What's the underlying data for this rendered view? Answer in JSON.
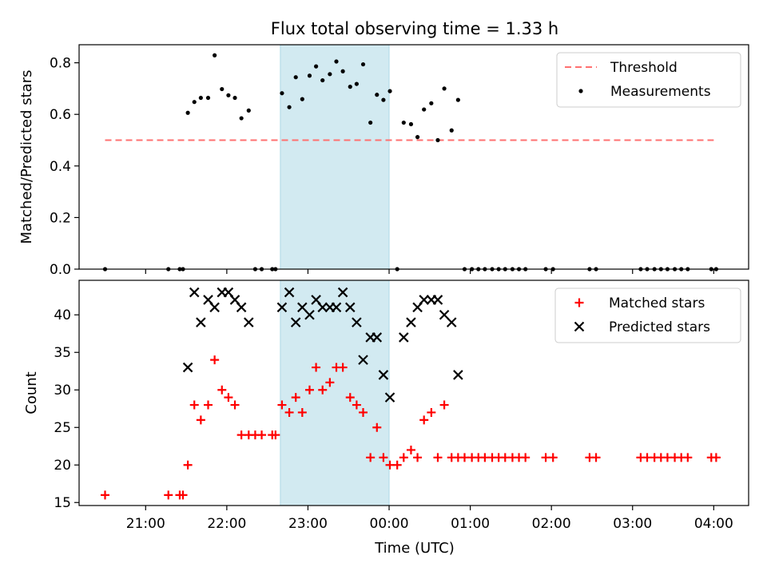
{
  "chart_data": {
    "title": "Flux total observing time = 1.33 h",
    "xlabel": "Time (UTC)",
    "x_unit": "hours since 21:00 UTC",
    "xlim": [
      -0.82,
      7.43
    ],
    "xtick_labels": [
      "21:00",
      "22:00",
      "23:00",
      "00:00",
      "01:00",
      "02:00",
      "03:00",
      "04:00"
    ],
    "xtick_values": [
      0,
      1,
      2,
      3,
      4,
      5,
      6,
      7
    ],
    "highlight_span": {
      "x0": 1.66,
      "x1": 3.0,
      "color": "#add8e6"
    },
    "panels": [
      {
        "type": "scatter",
        "ylabel": "Matched/Predicted stars",
        "ylim": [
          0,
          0.87
        ],
        "yticks": [
          0.0,
          0.2,
          0.4,
          0.6,
          0.8
        ],
        "ytick_labels": [
          "0.0",
          "0.2",
          "0.4",
          "0.6",
          "0.8"
        ],
        "legend": [
          "Threshold",
          "Measurements"
        ],
        "legend_position": "top-right",
        "threshold": {
          "name": "Threshold",
          "value": 0.5,
          "x_range": [
            -0.5,
            7.0
          ],
          "color": "#ff7070"
        },
        "series": [
          {
            "name": "Measurements",
            "marker": "dot",
            "color": "#000000",
            "points": [
              [
                -0.5,
                0
              ],
              [
                0.28,
                0
              ],
              [
                0.42,
                0
              ],
              [
                0.46,
                0
              ],
              [
                0.52,
                0.606
              ],
              [
                0.6,
                0.648
              ],
              [
                0.68,
                0.664
              ],
              [
                0.77,
                0.664
              ],
              [
                0.85,
                0.829
              ],
              [
                0.94,
                0.698
              ],
              [
                1.02,
                0.674
              ],
              [
                1.1,
                0.664
              ],
              [
                1.18,
                0.585
              ],
              [
                1.27,
                0.615
              ],
              [
                1.35,
                0
              ],
              [
                1.43,
                0
              ],
              [
                1.56,
                0
              ],
              [
                1.6,
                0
              ],
              [
                1.68,
                0.682
              ],
              [
                1.77,
                0.628
              ],
              [
                1.85,
                0.744
              ],
              [
                1.93,
                0.659
              ],
              [
                2.02,
                0.75
              ],
              [
                2.1,
                0.786
              ],
              [
                2.18,
                0.732
              ],
              [
                2.27,
                0.756
              ],
              [
                2.35,
                0.805
              ],
              [
                2.43,
                0.767
              ],
              [
                2.52,
                0.707
              ],
              [
                2.6,
                0.718
              ],
              [
                2.68,
                0.794
              ],
              [
                2.77,
                0.568
              ],
              [
                2.85,
                0.676
              ],
              [
                2.93,
                0.656
              ],
              [
                3.01,
                0.69
              ],
              [
                3.1,
                0
              ],
              [
                3.18,
                0.568
              ],
              [
                3.27,
                0.562
              ],
              [
                3.35,
                0.512
              ],
              [
                3.43,
                0.619
              ],
              [
                3.52,
                0.643
              ],
              [
                3.6,
                0.5
              ],
              [
                3.68,
                0.7
              ],
              [
                3.77,
                0.538
              ],
              [
                3.85,
                0.656
              ],
              [
                3.93,
                0
              ],
              [
                4.02,
                0
              ],
              [
                4.1,
                0
              ],
              [
                4.18,
                0
              ],
              [
                4.27,
                0
              ],
              [
                4.35,
                0
              ],
              [
                4.43,
                0
              ],
              [
                4.52,
                0
              ],
              [
                4.6,
                0
              ],
              [
                4.68,
                0
              ],
              [
                4.93,
                0
              ],
              [
                5.02,
                0
              ],
              [
                5.47,
                0
              ],
              [
                5.55,
                0
              ],
              [
                6.1,
                0
              ],
              [
                6.18,
                0
              ],
              [
                6.27,
                0
              ],
              [
                6.35,
                0
              ],
              [
                6.43,
                0
              ],
              [
                6.52,
                0
              ],
              [
                6.6,
                0
              ],
              [
                6.68,
                0
              ],
              [
                6.97,
                0
              ],
              [
                7.03,
                0
              ]
            ]
          }
        ]
      },
      {
        "type": "scatter",
        "ylabel": "Count",
        "ylim": [
          14.6,
          44.6
        ],
        "yticks": [
          15,
          20,
          25,
          30,
          35,
          40
        ],
        "ytick_labels": [
          "15",
          "20",
          "25",
          "30",
          "35",
          "40"
        ],
        "legend": [
          "Matched stars",
          "Predicted stars"
        ],
        "legend_position": "top-right",
        "series": [
          {
            "name": "Matched stars",
            "marker": "plus",
            "color": "#ff0000",
            "points": [
              [
                -0.5,
                16
              ],
              [
                0.28,
                16
              ],
              [
                0.42,
                16
              ],
              [
                0.46,
                16
              ],
              [
                0.52,
                20
              ],
              [
                0.6,
                28
              ],
              [
                0.68,
                26
              ],
              [
                0.77,
                28
              ],
              [
                0.85,
                34
              ],
              [
                0.94,
                30
              ],
              [
                1.02,
                29
              ],
              [
                1.1,
                28
              ],
              [
                1.18,
                24
              ],
              [
                1.27,
                24
              ],
              [
                1.35,
                24
              ],
              [
                1.43,
                24
              ],
              [
                1.56,
                24
              ],
              [
                1.6,
                24
              ],
              [
                1.68,
                28
              ],
              [
                1.77,
                27
              ],
              [
                1.85,
                29
              ],
              [
                1.93,
                27
              ],
              [
                2.02,
                30
              ],
              [
                2.1,
                33
              ],
              [
                2.18,
                30
              ],
              [
                2.27,
                31
              ],
              [
                2.35,
                33
              ],
              [
                2.43,
                33
              ],
              [
                2.52,
                29
              ],
              [
                2.6,
                28
              ],
              [
                2.68,
                27
              ],
              [
                2.77,
                21
              ],
              [
                2.85,
                25
              ],
              [
                2.93,
                21
              ],
              [
                3.01,
                20
              ],
              [
                3.1,
                20
              ],
              [
                3.18,
                21
              ],
              [
                3.27,
                22
              ],
              [
                3.35,
                21
              ],
              [
                3.43,
                26
              ],
              [
                3.52,
                27
              ],
              [
                3.6,
                21
              ],
              [
                3.68,
                28
              ],
              [
                3.77,
                21
              ],
              [
                3.85,
                21
              ],
              [
                3.93,
                21
              ],
              [
                4.02,
                21
              ],
              [
                4.1,
                21
              ],
              [
                4.18,
                21
              ],
              [
                4.27,
                21
              ],
              [
                4.35,
                21
              ],
              [
                4.43,
                21
              ],
              [
                4.52,
                21
              ],
              [
                4.6,
                21
              ],
              [
                4.68,
                21
              ],
              [
                4.93,
                21
              ],
              [
                5.02,
                21
              ],
              [
                5.47,
                21
              ],
              [
                5.55,
                21
              ],
              [
                6.1,
                21
              ],
              [
                6.18,
                21
              ],
              [
                6.27,
                21
              ],
              [
                6.35,
                21
              ],
              [
                6.43,
                21
              ],
              [
                6.52,
                21
              ],
              [
                6.6,
                21
              ],
              [
                6.68,
                21
              ],
              [
                6.97,
                21
              ],
              [
                7.03,
                21
              ]
            ]
          },
          {
            "name": "Predicted stars",
            "marker": "x",
            "color": "#000000",
            "points": [
              [
                0.52,
                33
              ],
              [
                0.6,
                43
              ],
              [
                0.68,
                39
              ],
              [
                0.77,
                42
              ],
              [
                0.85,
                41
              ],
              [
                0.94,
                43
              ],
              [
                1.02,
                43
              ],
              [
                1.1,
                42
              ],
              [
                1.18,
                41
              ],
              [
                1.27,
                39
              ],
              [
                1.68,
                41
              ],
              [
                1.77,
                43
              ],
              [
                1.85,
                39
              ],
              [
                1.93,
                41
              ],
              [
                2.02,
                40
              ],
              [
                2.1,
                42
              ],
              [
                2.18,
                41
              ],
              [
                2.27,
                41
              ],
              [
                2.35,
                41
              ],
              [
                2.43,
                43
              ],
              [
                2.52,
                41
              ],
              [
                2.6,
                39
              ],
              [
                2.68,
                34
              ],
              [
                2.77,
                37
              ],
              [
                2.85,
                37
              ],
              [
                2.93,
                32
              ],
              [
                3.01,
                29
              ],
              [
                3.18,
                37
              ],
              [
                3.27,
                39
              ],
              [
                3.35,
                41
              ],
              [
                3.43,
                42
              ],
              [
                3.52,
                42
              ],
              [
                3.6,
                42
              ],
              [
                3.68,
                40
              ],
              [
                3.77,
                39
              ],
              [
                3.85,
                32
              ]
            ]
          }
        ]
      }
    ]
  }
}
